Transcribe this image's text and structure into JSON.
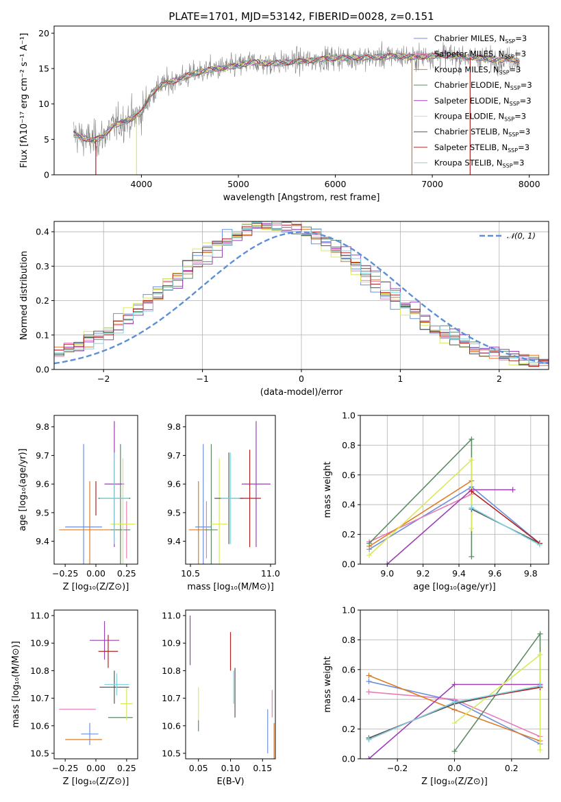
{
  "title": "PLATE=1701, MJD=53142, FIBERID=0028, z=0.151",
  "colors": {
    "Chabrier MILES": "#6a8fdc",
    "Salpeter MILES": "#e67bb8",
    "Kroupa MILES": "#de7a22",
    "Chabrier ELODIE": "#5b8a63",
    "Salpeter ELODIE": "#9b3fb5",
    "Kroupa ELODIE": "#d9e95a",
    "Chabrier STELIB": "#555555",
    "Salpeter STELIB": "#b22222",
    "Kroupa STELIB": "#80d4e0",
    "observed": "#808080",
    "normal": "#5b8fd6"
  },
  "chart_data": [
    {
      "id": "spectrum",
      "type": "line",
      "xlabel": "wavelength [Angstrom, rest frame]",
      "ylabel": "Flux [fλ10⁻¹⁷ erg cm⁻² s⁻¹ A⁻¹]",
      "xlim": [
        3100,
        8200
      ],
      "ylim": [
        0,
        21
      ],
      "xticks": [
        4000,
        5000,
        6000,
        7000,
        8000
      ],
      "yticks": [
        0,
        5,
        10,
        15,
        20
      ],
      "grid": false,
      "legend_position": "top-right",
      "legend": [
        "Chabrier MILES, N_SSP=3",
        "Salpeter MILES, N_SSP=3",
        "Kroupa MILES, N_SSP=3",
        "Chabrier ELODIE, N_SSP=3",
        "Salpeter ELODIE, N_SSP=3",
        "Kroupa ELODIE, N_SSP=3",
        "Chabrier STELIB, N_SSP=3",
        "Salpeter STELIB, N_SSP=3",
        "Kroupa STELIB, N_SSP=3"
      ],
      "model_continuum": {
        "x": [
          3300,
          3400,
          3500,
          3600,
          3700,
          3800,
          3900,
          4000,
          4100,
          4200,
          4300,
          4400,
          4500,
          4600,
          4700,
          4800,
          4900,
          5000,
          5100,
          5200,
          5300,
          5400,
          5500,
          5600,
          5700,
          5800,
          5900,
          6000,
          6100,
          6200,
          6300,
          6400,
          6500,
          6600,
          6700,
          6800,
          6900,
          7000,
          7100,
          7200,
          7300,
          7400,
          7500,
          7600,
          7700,
          7800,
          7900
        ],
        "y": [
          5.8,
          5.2,
          4.8,
          5.4,
          6.8,
          7.4,
          8.0,
          8.8,
          11.4,
          12.6,
          13.1,
          13.6,
          14.1,
          14.5,
          14.8,
          15.0,
          15.2,
          15.4,
          15.8,
          15.9,
          15.7,
          15.8,
          15.9,
          16.0,
          16.1,
          16.2,
          16.4,
          16.5,
          16.5,
          16.6,
          16.5,
          16.6,
          16.7,
          16.8,
          16.7,
          16.6,
          16.7,
          16.8,
          16.9,
          16.8,
          16.7,
          16.6,
          16.5,
          16.3,
          16.2,
          16.4,
          16.0
        ]
      },
      "model_drops": [
        {
          "x": 3530,
          "model": "Salpeter STELIB"
        },
        {
          "x": 3950,
          "model": "Kroupa ELODIE"
        },
        {
          "x": 6790,
          "model": "Kroupa MILES"
        },
        {
          "x": 7390,
          "model": "Salpeter STELIB"
        }
      ]
    },
    {
      "id": "residual-histogram",
      "type": "line",
      "xlabel": "(data-model)/error",
      "ylabel": "Normed distribution",
      "xlim": [
        -2.5,
        2.5
      ],
      "ylim": [
        0,
        0.43
      ],
      "xticks": [
        -2,
        -1,
        0,
        1,
        2
      ],
      "yticks": [
        0.0,
        0.1,
        0.2,
        0.3,
        0.4
      ],
      "grid": true,
      "legend_position": "top-right",
      "legend": [
        "𝒩(0, 1)"
      ]
    },
    {
      "id": "age-vs-Z",
      "type": "scatter",
      "xlabel": "Z [log₁₀(Z/Z⊙)]",
      "ylabel": "age  [log₁₀(age/yr)]",
      "xlim": [
        -0.34,
        0.34
      ],
      "ylim": [
        9.32,
        9.84
      ],
      "xticks": [
        -0.25,
        0.0,
        0.25
      ],
      "yticks": [
        9.4,
        9.5,
        9.6,
        9.7,
        9.8
      ],
      "grid": false,
      "points": [
        {
          "model": "Chabrier MILES",
          "x": -0.1,
          "xerr": 0.15,
          "y": 9.45,
          "yerr": 0.29
        },
        {
          "model": "Salpeter MILES",
          "x": 0.25,
          "xerr": 0.0,
          "y": 9.44,
          "yerr": 0.1
        },
        {
          "model": "Kroupa MILES",
          "x": -0.05,
          "xerr": 0.25,
          "y": 9.44,
          "yerr": 0.17
        },
        {
          "model": "Chabrier ELODIE",
          "x": 0.2,
          "xerr": 0.08,
          "y": 9.44,
          "yerr": 0.3
        },
        {
          "model": "Salpeter ELODIE",
          "x": 0.15,
          "xerr": 0.08,
          "y": 9.6,
          "yerr": 0.22
        },
        {
          "model": "Kroupa ELODIE",
          "x": 0.22,
          "xerr": 0.1,
          "y": 9.46,
          "yerr": 0.23
        },
        {
          "model": "Chabrier STELIB",
          "x": 0.15,
          "xerr": 0.13,
          "y": 9.55,
          "yerr": 0.16
        },
        {
          "model": "Salpeter STELIB",
          "x": 0.0,
          "xerr": 0.0,
          "y": 9.55,
          "yerr": 0.06
        },
        {
          "model": "Kroupa STELIB",
          "x": 0.15,
          "xerr": 0.12,
          "y": 9.55,
          "yerr": 0.16
        }
      ]
    },
    {
      "id": "age-vs-mass",
      "type": "scatter",
      "xlabel": "mass [log₁₀(M/M⊙)]",
      "xlim": [
        10.47,
        11.03
      ],
      "ylim": [
        9.32,
        9.84
      ],
      "xticks": [
        10.5,
        11.0
      ],
      "yticks": [
        9.4,
        9.5,
        9.6,
        9.7,
        9.8
      ],
      "grid": false,
      "points": [
        {
          "model": "Chabrier MILES",
          "x": 10.58,
          "xerr": 0.05,
          "y": 9.45,
          "yerr": 0.29
        },
        {
          "model": "Salpeter MILES",
          "x": 10.6,
          "xerr": 0.0,
          "y": 9.44,
          "yerr": 0.1
        },
        {
          "model": "Kroupa MILES",
          "x": 10.55,
          "xerr": 0.06,
          "y": 9.44,
          "yerr": 0.17
        },
        {
          "model": "Chabrier ELODIE",
          "x": 10.63,
          "xerr": 0.04,
          "y": 9.44,
          "yerr": 0.3
        },
        {
          "model": "Salpeter ELODIE",
          "x": 10.91,
          "xerr": 0.09,
          "y": 9.6,
          "yerr": 0.22
        },
        {
          "model": "Kroupa ELODIE",
          "x": 10.68,
          "xerr": 0.05,
          "y": 9.46,
          "yerr": 0.23
        },
        {
          "model": "Chabrier STELIB",
          "x": 10.74,
          "xerr": 0.09,
          "y": 9.55,
          "yerr": 0.16
        },
        {
          "model": "Salpeter STELIB",
          "x": 10.87,
          "xerr": 0.07,
          "y": 9.55,
          "yerr": 0.17
        },
        {
          "model": "Kroupa STELIB",
          "x": 10.75,
          "xerr": 0.06,
          "y": 9.55,
          "yerr": 0.16
        }
      ]
    },
    {
      "id": "mass-weight-vs-age",
      "type": "line",
      "xlabel": "age  [log₁₀(age/yr)]",
      "ylabel": "mass weight",
      "xlim": [
        8.85,
        9.9
      ],
      "ylim": [
        0.0,
        1.0
      ],
      "xticks": [
        9.0,
        9.2,
        9.4,
        9.6,
        9.8
      ],
      "yticks": [
        0.0,
        0.2,
        0.4,
        0.6,
        0.8,
        1.0
      ],
      "grid": true,
      "series": [
        {
          "model": "Chabrier MILES",
          "x": [
            8.9,
            9.47,
            9.85
          ],
          "y": [
            0.1,
            0.52,
            0.14
          ]
        },
        {
          "model": "Salpeter MILES",
          "x": [
            8.9,
            9.47
          ],
          "y": [
            0.15,
            0.47
          ]
        },
        {
          "model": "Kroupa MILES",
          "x": [
            8.9,
            9.47
          ],
          "y": [
            0.12,
            0.56
          ]
        },
        {
          "model": "Chabrier ELODIE",
          "x": [
            8.9,
            9.47,
            9.47
          ],
          "y": [
            0.14,
            0.84,
            0.05
          ]
        },
        {
          "model": "Salpeter ELODIE",
          "x": [
            9.0,
            9.47,
            9.7
          ],
          "y": [
            0.0,
            0.5,
            0.5
          ]
        },
        {
          "model": "Kroupa ELODIE",
          "x": [
            8.9,
            9.47,
            9.47
          ],
          "y": [
            0.06,
            0.7,
            0.24
          ]
        },
        {
          "model": "Chabrier STELIB",
          "x": [
            9.47,
            9.85
          ],
          "y": [
            0.37,
            0.14
          ]
        },
        {
          "model": "Salpeter STELIB",
          "x": [
            9.47,
            9.85
          ],
          "y": [
            0.49,
            0.14
          ]
        },
        {
          "model": "Kroupa STELIB",
          "x": [
            9.47,
            9.85
          ],
          "y": [
            0.38,
            0.13
          ]
        }
      ]
    },
    {
      "id": "mass-vs-Z",
      "type": "scatter",
      "xlabel": "Z [log₁₀(Z/Z⊙)]",
      "ylabel": "mass [log₁₀(M/M⊙)]",
      "xlim": [
        -0.34,
        0.34
      ],
      "ylim": [
        10.48,
        11.02
      ],
      "xticks": [
        -0.25,
        0.0,
        0.25
      ],
      "yticks": [
        10.5,
        10.6,
        10.7,
        10.8,
        10.9,
        11.0
      ],
      "grid": false,
      "points": [
        {
          "model": "Chabrier MILES",
          "x": -0.05,
          "xerr": 0.07,
          "y": 10.57,
          "yerr": 0.04
        },
        {
          "model": "Salpeter MILES",
          "x": -0.15,
          "xerr": 0.15,
          "y": 10.66,
          "yerr": 0.0
        },
        {
          "model": "Kroupa MILES",
          "x": -0.1,
          "xerr": 0.15,
          "y": 10.55,
          "yerr": 0.0
        },
        {
          "model": "Chabrier ELODIE",
          "x": 0.2,
          "xerr": 0.1,
          "y": 10.63,
          "yerr": 0.0
        },
        {
          "model": "Salpeter ELODIE",
          "x": 0.07,
          "xerr": 0.12,
          "y": 10.91,
          "yerr": 0.07
        },
        {
          "model": "Kroupa ELODIE",
          "x": 0.25,
          "xerr": 0.05,
          "y": 10.68,
          "yerr": 0.06
        },
        {
          "model": "Chabrier STELIB",
          "x": 0.15,
          "xerr": 0.12,
          "y": 10.74,
          "yerr": 0.06
        },
        {
          "model": "Salpeter STELIB",
          "x": 0.1,
          "xerr": 0.08,
          "y": 10.87,
          "yerr": 0.06
        },
        {
          "model": "Kroupa STELIB",
          "x": 0.17,
          "xerr": 0.1,
          "y": 10.75,
          "yerr": 0.04
        }
      ]
    },
    {
      "id": "mass-vs-ebv",
      "type": "scatter",
      "xlabel": "E(B-V)",
      "xlim": [
        0.03,
        0.17
      ],
      "ylim": [
        10.48,
        11.02
      ],
      "xticks": [
        0.05,
        0.1,
        0.15
      ],
      "yticks": [
        10.5,
        10.6,
        10.7,
        10.8,
        10.9,
        11.0
      ],
      "grid": false,
      "points": [
        {
          "model": "Chabrier MILES",
          "x": 0.158,
          "xerr": 0.0,
          "y": 10.58,
          "yerr": 0.08
        },
        {
          "model": "Salpeter MILES",
          "x": 0.165,
          "xerr": 0.0,
          "y": 10.68,
          "yerr": 0.05
        },
        {
          "model": "Kroupa MILES",
          "x": 0.168,
          "xerr": 0.0,
          "y": 10.54,
          "yerr": 0.07
        },
        {
          "model": "Chabrier ELODIE",
          "x": 0.05,
          "xerr": 0.0,
          "y": 10.6,
          "yerr": 0.02
        },
        {
          "model": "Salpeter ELODIE",
          "x": 0.037,
          "xerr": 0.0,
          "y": 10.91,
          "yerr": 0.09
        },
        {
          "model": "Kroupa ELODIE",
          "x": 0.05,
          "xerr": 0.0,
          "y": 10.68,
          "yerr": 0.06
        },
        {
          "model": "Chabrier STELIB",
          "x": 0.107,
          "xerr": 0.0,
          "y": 10.72,
          "yerr": 0.09
        },
        {
          "model": "Salpeter STELIB",
          "x": 0.1,
          "xerr": 0.0,
          "y": 10.87,
          "yerr": 0.07
        },
        {
          "model": "Kroupa STELIB",
          "x": 0.105,
          "xerr": 0.0,
          "y": 10.74,
          "yerr": 0.06
        }
      ]
    },
    {
      "id": "mass-weight-vs-Z",
      "type": "line",
      "xlabel": "Z [log₁₀(Z/Z⊙)]",
      "ylabel": "mass weight",
      "xlim": [
        -0.33,
        0.33
      ],
      "ylim": [
        0.0,
        1.0
      ],
      "xticks": [
        -0.2,
        0.0,
        0.2
      ],
      "yticks": [
        0.0,
        0.2,
        0.4,
        0.6,
        0.8,
        1.0
      ],
      "grid": true,
      "series": [
        {
          "model": "Chabrier MILES",
          "x": [
            -0.3,
            0.0,
            0.3
          ],
          "y": [
            0.52,
            0.39,
            0.1
          ]
        },
        {
          "model": "Salpeter MILES",
          "x": [
            -0.3,
            0.0,
            0.3
          ],
          "y": [
            0.45,
            0.4,
            0.15
          ]
        },
        {
          "model": "Kroupa MILES",
          "x": [
            -0.3,
            0.0,
            0.3
          ],
          "y": [
            0.56,
            0.33,
            0.12
          ]
        },
        {
          "model": "Chabrier ELODIE",
          "x": [
            0.0,
            0.3,
            0.3
          ],
          "y": [
            0.05,
            0.84,
            0.48
          ]
        },
        {
          "model": "Salpeter ELODIE",
          "x": [
            -0.3,
            0.0,
            0.3
          ],
          "y": [
            0.0,
            0.5,
            0.5
          ]
        },
        {
          "model": "Kroupa ELODIE",
          "x": [
            0.0,
            0.3,
            0.3
          ],
          "y": [
            0.24,
            0.7,
            0.06
          ]
        },
        {
          "model": "Chabrier STELIB",
          "x": [
            -0.3,
            0.0,
            0.3
          ],
          "y": [
            0.14,
            0.37,
            0.49
          ]
        },
        {
          "model": "Salpeter STELIB",
          "x": [
            -0.3,
            0.0,
            0.3
          ],
          "y": [
            0.13,
            0.38,
            0.48
          ]
        },
        {
          "model": "Kroupa STELIB",
          "x": [
            -0.3,
            0.0,
            0.3
          ],
          "y": [
            0.13,
            0.38,
            0.49
          ]
        }
      ]
    }
  ]
}
